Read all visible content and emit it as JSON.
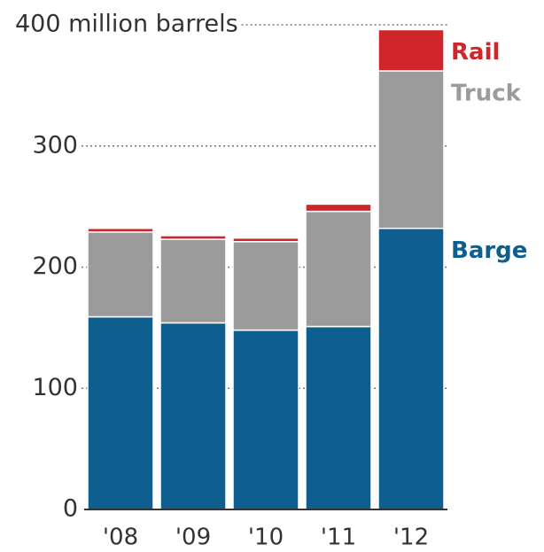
{
  "chart_data": {
    "type": "stacked_bar",
    "categories": [
      "'08",
      "'09",
      "'10",
      "'11",
      "'12"
    ],
    "series": [
      {
        "name": "Barge",
        "color": "#0e5f8f",
        "values": [
          159,
          154,
          148,
          151,
          232
        ]
      },
      {
        "name": "Truck",
        "color": "#9b9b9b",
        "values": [
          70,
          69,
          73,
          95,
          130
        ]
      },
      {
        "name": "Rail",
        "color": "#d0262b",
        "values": [
          3,
          3,
          3,
          6,
          34
        ]
      }
    ],
    "ylim": [
      0,
      400
    ],
    "yticks": [
      0,
      100,
      200,
      300,
      {
        "value": 400,
        "label": "400 million barrels"
      }
    ],
    "grid": true
  }
}
